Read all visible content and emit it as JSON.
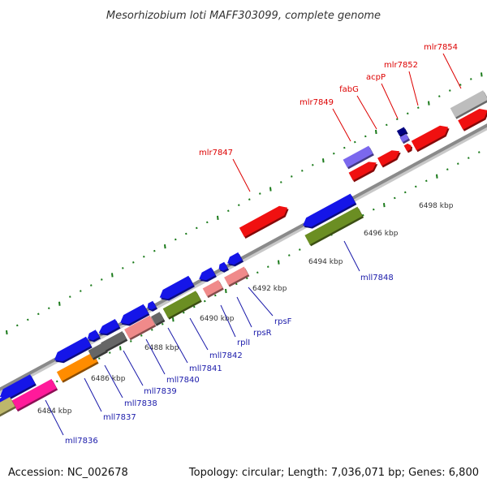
{
  "title": "Mesorhizobium loti MAFF303099, complete genome",
  "footer": {
    "accession": "Accession: NC_002678",
    "summary": "Topology: circular; Length: 7,036,071 bp; Genes: 6,800"
  },
  "colors": {
    "backbone": "#8a8a8a",
    "tick": "#1a7a1a",
    "forward_label": "#dd0000",
    "reverse_label": "#1a1aaa",
    "blue": "#1515e8",
    "red": "#f01010",
    "pink": "#f08a8a",
    "gray": "#666666",
    "light_gray": "#bdbdbd",
    "orange": "#ff8c00",
    "magenta": "#ff1a9a",
    "olive": "#6b8e23",
    "khaki": "#bdb76b",
    "lavender": "#7b68ee",
    "navy": "#000080"
  },
  "tick_labels": [
    "6484 kbp",
    "6486 kbp",
    "6488 kbp",
    "6490 kbp",
    "6492 kbp",
    "6494 kbp",
    "6496 kbp",
    "6498 kbp"
  ],
  "labels_forward": [
    "mlr7847",
    "mlr7849",
    "fabG",
    "acpP",
    "mlr7852",
    "mlr7854"
  ],
  "labels_reverse": [
    "mll7836",
    "mll7837",
    "mll7838",
    "mll7839",
    "mll7840",
    "mll7841",
    "mll7842",
    "rplI",
    "rpsR",
    "rpsF",
    "mll7848"
  ]
}
